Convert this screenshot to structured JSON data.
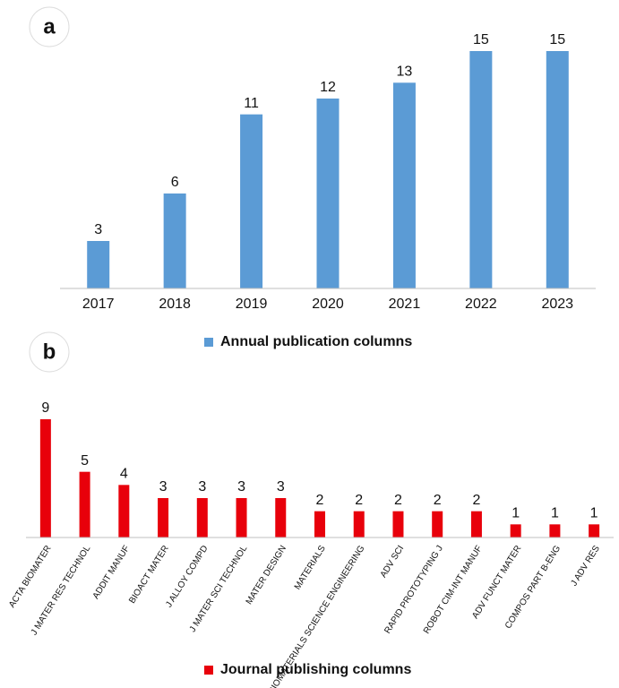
{
  "chart_data": [
    {
      "type": "bar",
      "panel_label": "a",
      "categories": [
        "2017",
        "2018",
        "2019",
        "2020",
        "2021",
        "2022",
        "2023"
      ],
      "series": [
        {
          "name": "Annual publication columns",
          "color": "#5b9bd5",
          "values": [
            3,
            6,
            11,
            12,
            13,
            15,
            15
          ]
        }
      ],
      "ylim": [
        0,
        15
      ]
    },
    {
      "type": "bar",
      "panel_label": "b",
      "categories": [
        "ACTA BIOMATER",
        "J MATER RES TECHNOL",
        "ADDIT MANUF",
        "BIOACT MATER",
        "J ALLOY COMPD",
        "J MATER SCI TECHNOL",
        "MATER DESIGN",
        "MATERIALS",
        "ACS BIOMATERIALS SCIENCE ENGINEERING",
        "ADV SCI",
        "RAPID PROTOTYPING J",
        "ROBOT CIM-INT MANUF",
        "ADV FUNCT MATER",
        "COMPOS PART B-ENG",
        "J ADV RES"
      ],
      "series": [
        {
          "name": "Journal publishing columns",
          "color": "#e8000b",
          "values": [
            9,
            5,
            4,
            3,
            3,
            3,
            3,
            2,
            2,
            2,
            2,
            2,
            1,
            1,
            1
          ]
        }
      ],
      "ylim": [
        0,
        9
      ]
    }
  ]
}
